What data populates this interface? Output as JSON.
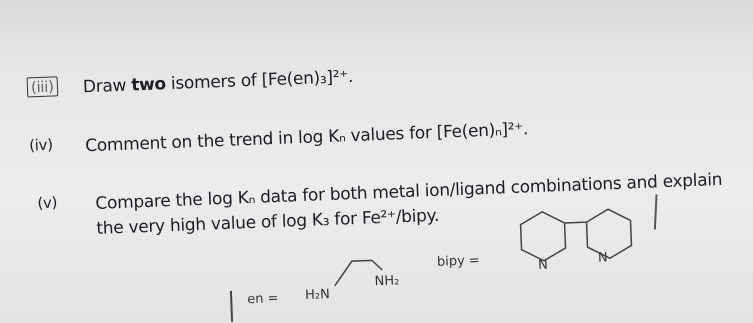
{
  "items": [
    {
      "label": "(iii)",
      "parts": [
        "Draw ",
        "two",
        " isomers of [Fe(en)₃]²⁺."
      ]
    },
    {
      "label": "(iv)",
      "parts": [
        "Comment on the trend in log Kₙ values for [Fe(en)ₙ]²⁺."
      ]
    },
    {
      "label": "(v)",
      "parts": [
        "Compare the log Kₙ data for both metal ion/ligand combinations and explain",
        "the very high value of log K₃ for Fe²⁺/bipy."
      ]
    }
  ],
  "footnote": {
    "en_label": "en =",
    "en_left": "H₂N",
    "en_right": "NH₂",
    "bipy_label": "bipy =",
    "ring_n1": "N",
    "ring_n2": "N"
  }
}
